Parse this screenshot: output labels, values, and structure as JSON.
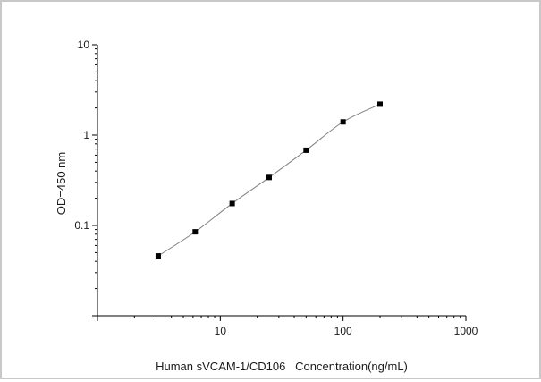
{
  "chart_data": {
    "type": "line",
    "title": "",
    "xlabel": "Human sVCAM-1/CD106   Concentration(ng/mL)",
    "ylabel": "OD=450 nm",
    "x_scale": "log",
    "y_scale": "log",
    "xlim": [
      1,
      1000
    ],
    "ylim": [
      0.01,
      10
    ],
    "x_ticks": [
      10,
      100,
      1000
    ],
    "x_tick_labels": [
      "10",
      "100",
      "1000"
    ],
    "y_ticks": [
      0.1,
      1,
      10
    ],
    "y_tick_labels": [
      "0.1",
      "1",
      "10"
    ],
    "grid": false,
    "legend": "none",
    "series": [
      {
        "marker": "square",
        "color": "#000000",
        "line_color": "#808080",
        "x": [
          3.125,
          6.25,
          12.5,
          25,
          50,
          100,
          200
        ],
        "y": [
          0.046,
          0.085,
          0.175,
          0.34,
          0.68,
          1.4,
          2.2
        ]
      }
    ]
  }
}
